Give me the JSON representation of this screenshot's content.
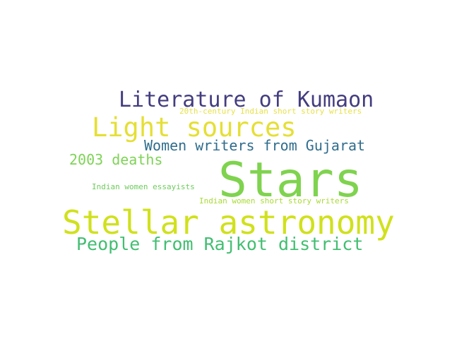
{
  "word_cloud": {
    "words": [
      {
        "id": "literature-of-kumaon",
        "text": "Literature of Kumaon",
        "color": "#433d7f"
      },
      {
        "id": "20th-century-indian-short-story-writers",
        "text": "20th-century Indian short story writers",
        "color": "#e7e14a"
      },
      {
        "id": "light-sources",
        "text": "Light sources",
        "color": "#e5df35"
      },
      {
        "id": "women-writers-from-gujarat",
        "text": "Women writers from Gujarat",
        "color": "#2f6d8d"
      },
      {
        "id": "2003-deaths",
        "text": "2003 deaths",
        "color": "#7ed356"
      },
      {
        "id": "stars",
        "text": "Stars",
        "color": "#7fd34e"
      },
      {
        "id": "indian-women-essayists",
        "text": "Indian women essayists",
        "color": "#6dcc5b"
      },
      {
        "id": "indian-women-short-story-writers",
        "text": "Indian women short story writers",
        "color": "#a8db34"
      },
      {
        "id": "stellar-astronomy",
        "text": "Stellar astronomy",
        "color": "#d0e11c"
      },
      {
        "id": "people-from-rajkot-district",
        "text": "People from Rajkot district",
        "color": "#42be71"
      }
    ]
  }
}
